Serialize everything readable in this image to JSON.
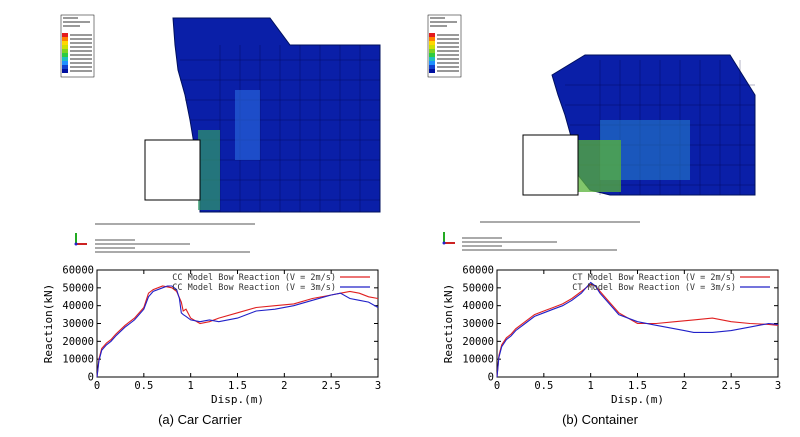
{
  "captions": {
    "a": "(a) Car Carrier",
    "b": "(b) Container"
  },
  "chart_data": [
    {
      "type": "line",
      "xlabel": "Disp.(m)",
      "ylabel": "Reaction(kN)",
      "xlim": [
        0,
        3
      ],
      "ylim": [
        0,
        60000
      ],
      "xticks": [
        "0",
        "0.5",
        "1",
        "1.5",
        "2",
        "2.5",
        "3"
      ],
      "yticks": [
        "0",
        "10000",
        "20000",
        "30000",
        "40000",
        "50000",
        "60000"
      ],
      "legend_position": "top-right",
      "series": [
        {
          "name": "CC Model Bow Reaction (V = 2m/s)",
          "color": "#e02020",
          "x": [
            0,
            0.02,
            0.05,
            0.1,
            0.15,
            0.2,
            0.3,
            0.4,
            0.5,
            0.55,
            0.6,
            0.7,
            0.8,
            0.85,
            0.9,
            0.92,
            0.95,
            1.0,
            1.1,
            1.2,
            1.3,
            1.5,
            1.7,
            1.9,
            2.1,
            2.3,
            2.5,
            2.6,
            2.7,
            2.8,
            2.9,
            3.0
          ],
          "y": [
            0,
            10000,
            16000,
            19000,
            21000,
            24000,
            29000,
            33000,
            39000,
            47000,
            49000,
            51000,
            50000,
            48000,
            42000,
            37000,
            38000,
            33000,
            30000,
            31000,
            33000,
            36000,
            39000,
            40000,
            41000,
            44000,
            46000,
            47000,
            48000,
            47000,
            45000,
            44000
          ]
        },
        {
          "name": "CC Model Bow Reaction (V = 3m/s)",
          "color": "#2020c8",
          "x": [
            0,
            0.02,
            0.05,
            0.1,
            0.15,
            0.2,
            0.3,
            0.4,
            0.5,
            0.55,
            0.6,
            0.7,
            0.75,
            0.8,
            0.85,
            0.88,
            0.9,
            0.92,
            0.95,
            1.0,
            1.1,
            1.2,
            1.3,
            1.5,
            1.7,
            1.9,
            2.1,
            2.3,
            2.5,
            2.6,
            2.7,
            2.8,
            2.9,
            3.0
          ],
          "y": [
            0,
            9000,
            15000,
            18000,
            20000,
            23000,
            28000,
            32000,
            38000,
            45000,
            48000,
            50000,
            51000,
            51000,
            49000,
            44000,
            36000,
            35000,
            34000,
            32000,
            31000,
            32000,
            31000,
            33000,
            37000,
            38000,
            40000,
            43000,
            46000,
            47000,
            44000,
            43000,
            42000,
            39000
          ]
        }
      ]
    },
    {
      "type": "line",
      "xlabel": "Disp.(m)",
      "ylabel": "Reaction(kN)",
      "xlim": [
        0,
        3
      ],
      "ylim": [
        0,
        60000
      ],
      "xticks": [
        "0",
        "0.5",
        "1",
        "1.5",
        "2",
        "2.5",
        "3"
      ],
      "yticks": [
        "0",
        "10000",
        "20000",
        "30000",
        "40000",
        "50000",
        "60000"
      ],
      "legend_position": "top-right",
      "series": [
        {
          "name": "CT Model Bow Reaction (V = 2m/s)",
          "color": "#e02020",
          "x": [
            0,
            0.02,
            0.05,
            0.1,
            0.15,
            0.2,
            0.3,
            0.4,
            0.5,
            0.6,
            0.7,
            0.8,
            0.9,
            0.95,
            1.0,
            1.05,
            1.1,
            1.2,
            1.3,
            1.5,
            1.7,
            1.9,
            2.1,
            2.3,
            2.5,
            2.7,
            2.9,
            3.0
          ],
          "y": [
            0,
            12000,
            18000,
            22000,
            24000,
            27000,
            31000,
            35000,
            37000,
            39000,
            41000,
            44000,
            48000,
            50000,
            52000,
            51000,
            48000,
            42000,
            36000,
            30000,
            30000,
            31000,
            32000,
            33000,
            31000,
            30000,
            29500,
            29000
          ]
        },
        {
          "name": "CT Model Bow Reaction (V = 3m/s)",
          "color": "#2020c8",
          "x": [
            0,
            0.02,
            0.05,
            0.1,
            0.15,
            0.2,
            0.3,
            0.4,
            0.5,
            0.6,
            0.7,
            0.8,
            0.9,
            0.95,
            1.0,
            1.05,
            1.1,
            1.2,
            1.3,
            1.5,
            1.7,
            1.9,
            2.0,
            2.1,
            2.3,
            2.5,
            2.7,
            2.9,
            3.0
          ],
          "y": [
            0,
            11000,
            17000,
            21000,
            23000,
            26000,
            30000,
            34000,
            36000,
            38000,
            40000,
            43000,
            47000,
            50000,
            53000,
            51000,
            47000,
            41000,
            35000,
            31000,
            29000,
            27000,
            26000,
            25000,
            25000,
            26000,
            28000,
            30000,
            29500
          ]
        }
      ]
    }
  ]
}
